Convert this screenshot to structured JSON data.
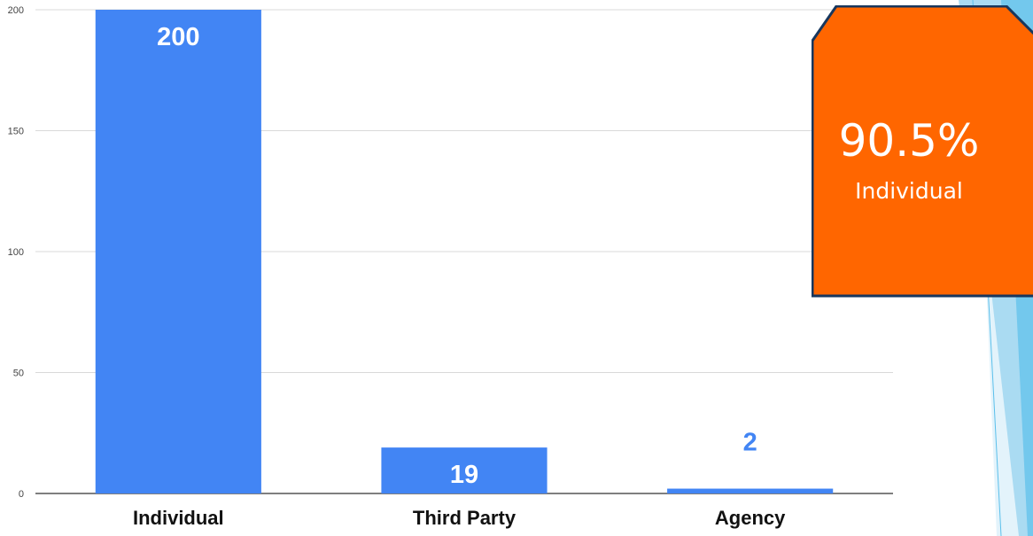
{
  "chart_data": {
    "type": "bar",
    "categories": [
      "Individual",
      "Third Party",
      "Agency"
    ],
    "values": [
      200,
      19,
      2
    ],
    "data_labels": [
      "200",
      "19",
      "2"
    ],
    "yticks": [
      "0",
      "50",
      "100",
      "150",
      "200"
    ],
    "ylim": [
      0,
      200
    ],
    "grid": true,
    "bar_color": "#4285f4",
    "title": "",
    "xlabel": "",
    "ylabel": ""
  },
  "callout": {
    "percent": "90.5%",
    "label": "Individual",
    "fill_color": "#ff6600",
    "border_color": "#17375e"
  }
}
